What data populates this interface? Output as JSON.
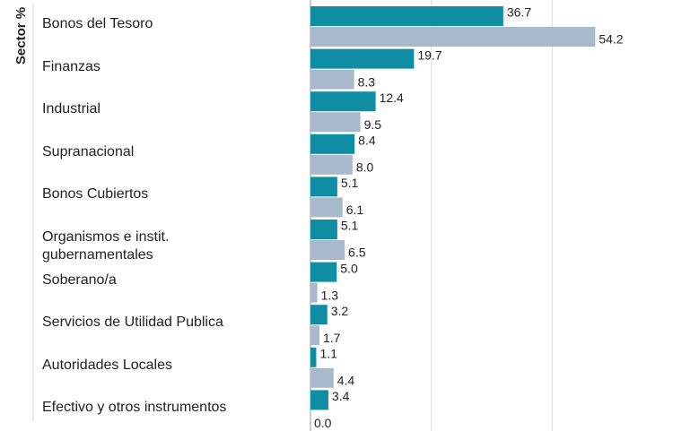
{
  "chart_data": {
    "type": "hbar",
    "ylabel": "Sector %",
    "categories": [
      "Bonos del Tesoro",
      "Finanzas",
      "Industrial",
      "Supranacional",
      "Bonos Cubiertos",
      "Organismos e instit. gubernamentales",
      "Soberano/a",
      "Servicios de Utilidad Publica",
      "Autoridades Locales",
      "Efectivo y otros instrumentos"
    ],
    "series": [
      {
        "color": "#0f8ea3",
        "values": [
          36.7,
          19.7,
          12.4,
          8.4,
          5.1,
          5.1,
          5.0,
          3.2,
          1.1,
          3.4
        ],
        "value_labels": [
          "36.7",
          "19.7",
          "12.4",
          "8.4",
          "5.1",
          "5.1",
          "5.0",
          "3.2",
          "1.1",
          "3.4"
        ]
      },
      {
        "color": "#a9b9cc",
        "values": [
          54.2,
          8.3,
          9.5,
          8.0,
          6.1,
          6.5,
          1.3,
          1.7,
          4.4,
          0.0
        ],
        "value_labels": [
          "54.2",
          "8.3",
          "9.5",
          "8.0",
          "6.1",
          "6.5",
          "1.3",
          "1.7",
          "4.4",
          "0.0"
        ]
      }
    ],
    "xlim": [
      0,
      69
    ],
    "xticks": [
      0,
      23,
      46
    ],
    "grid": true
  }
}
